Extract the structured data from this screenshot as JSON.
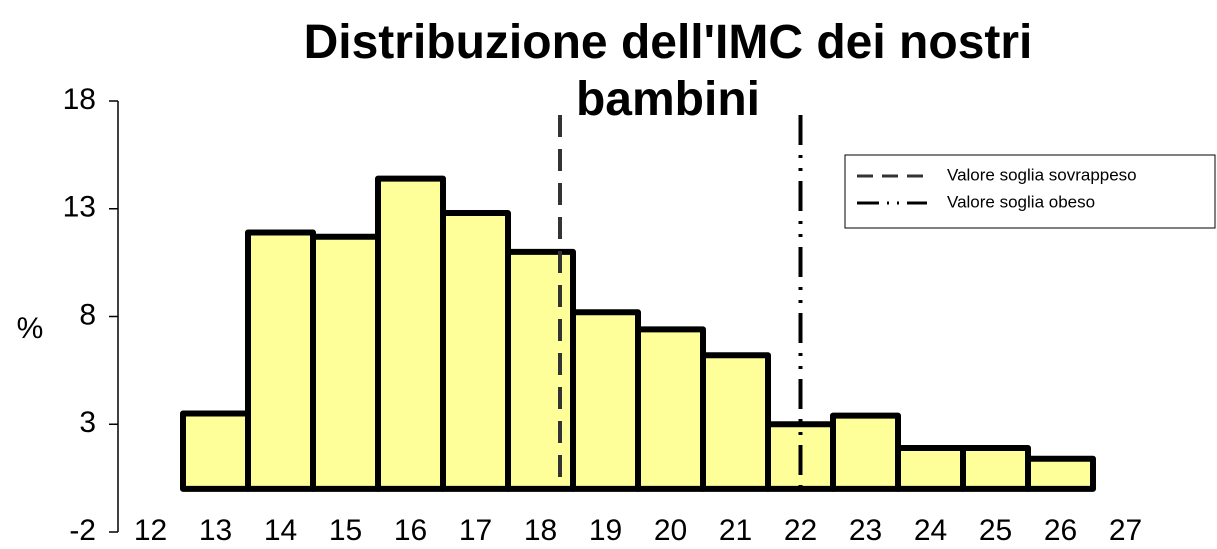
{
  "chart_data": {
    "type": "bar",
    "title": "Distribuzione dell'IMC dei nostri bambini",
    "y_label": "%",
    "categories": [
      "12",
      "13",
      "14",
      "15",
      "16",
      "17",
      "18",
      "19",
      "20",
      "21",
      "22",
      "23",
      "24",
      "25",
      "26",
      "27"
    ],
    "values": [
      0,
      3.5,
      11.9,
      11.7,
      14.4,
      12.8,
      11.0,
      8.2,
      7.4,
      6.2,
      3.0,
      3.4,
      1.9,
      1.9,
      1.4,
      0
    ],
    "color": "#ffff99",
    "ylim": [
      -2,
      18
    ],
    "yticks": [
      -2,
      3,
      8,
      13,
      18
    ],
    "xlim": [
      11.5,
      27.5
    ],
    "grid": false,
    "legend": "upper right",
    "reference_lines": [
      {
        "name": "Valore soglia sovrappeso",
        "x": 18.3,
        "style": "dashed",
        "color": "#333333"
      },
      {
        "name": "Valore soglia obeso",
        "x": 22,
        "style": "dashdotdot",
        "color": "#000000"
      }
    ]
  }
}
